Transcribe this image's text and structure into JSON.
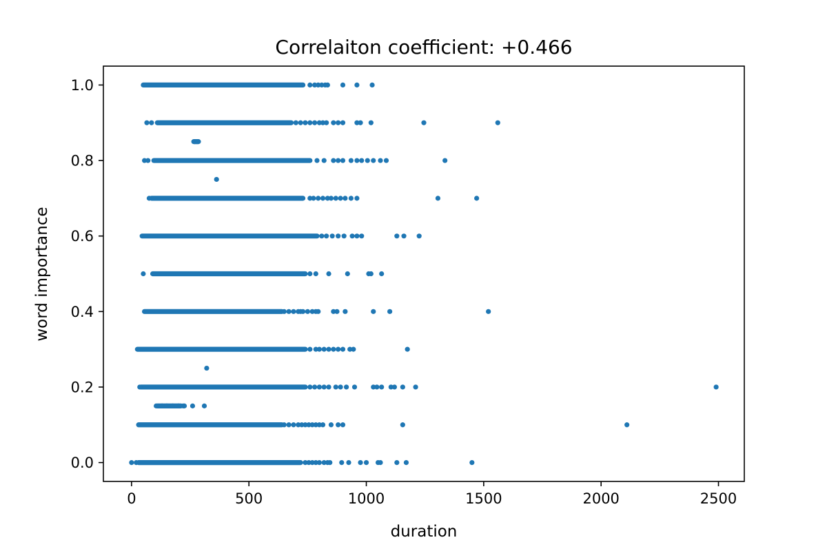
{
  "chart_data": {
    "type": "scatter",
    "title": "Correlaiton coefficient: +0.466",
    "xlabel": "duration",
    "ylabel": "word importance",
    "xlim": [
      -120,
      2610
    ],
    "ylim": [
      -0.05,
      1.05
    ],
    "xticks": [
      0,
      500,
      1000,
      1500,
      2000,
      2500
    ],
    "xtick_labels": [
      "0",
      "500",
      "1000",
      "1500",
      "2000",
      "2500"
    ],
    "yticks": [
      0.0,
      0.2,
      0.4,
      0.6,
      0.8,
      1.0
    ],
    "ytick_labels": [
      "0.0",
      "0.2",
      "0.4",
      "0.6",
      "0.8",
      "1.0"
    ],
    "grid": false,
    "marker_color": "#1f77b4",
    "rows": [
      {
        "y": 1.0,
        "dense_from": 50,
        "dense_to": 730,
        "x": [
          760,
          780,
          795,
          810,
          825,
          835,
          900,
          960,
          1025
        ]
      },
      {
        "y": 0.9,
        "dense_from": 110,
        "dense_to": 680,
        "x": [
          65,
          85,
          700,
          720,
          740,
          760,
          780,
          800,
          815,
          830,
          860,
          880,
          900,
          960,
          975,
          1020,
          1245,
          1560
        ]
      },
      {
        "y": 0.85,
        "dense_from": 265,
        "dense_to": 285,
        "x": [
          268,
          275,
          282
        ]
      },
      {
        "y": 0.8,
        "dense_from": 95,
        "dense_to": 760,
        "x": [
          55,
          70,
          790,
          820,
          860,
          880,
          900,
          935,
          960,
          980,
          1005,
          1030,
          1060,
          1085,
          1335
        ]
      },
      {
        "y": 0.75,
        "dense_from": 362,
        "dense_to": 362,
        "x": [
          362
        ]
      },
      {
        "y": 0.7,
        "dense_from": 85,
        "dense_to": 730,
        "x": [
          75,
          760,
          775,
          795,
          815,
          835,
          850,
          870,
          890,
          910,
          935,
          960,
          1305,
          1470
        ]
      },
      {
        "y": 0.6,
        "dense_from": 45,
        "dense_to": 790,
        "x": [
          810,
          830,
          855,
          880,
          905,
          940,
          960,
          980,
          1130,
          1160,
          1225
        ]
      },
      {
        "y": 0.5,
        "dense_from": 90,
        "dense_to": 740,
        "x": [
          50,
          760,
          785,
          840,
          920,
          1010,
          1020,
          1065
        ]
      },
      {
        "y": 0.4,
        "dense_from": 55,
        "dense_to": 640,
        "x": [
          650,
          670,
          690,
          710,
          720,
          730,
          750,
          770,
          785,
          795,
          860,
          875,
          910,
          1030,
          1100,
          1520
        ]
      },
      {
        "y": 0.3,
        "dense_from": 25,
        "dense_to": 740,
        "x": [
          760,
          785,
          800,
          820,
          840,
          860,
          880,
          900,
          930,
          945,
          1175
        ]
      },
      {
        "y": 0.25,
        "dense_from": 320,
        "dense_to": 320,
        "x": [
          320
        ]
      },
      {
        "y": 0.2,
        "dense_from": 40,
        "dense_to": 740,
        "x": [
          35,
          760,
          780,
          800,
          820,
          840,
          870,
          890,
          915,
          950,
          1030,
          1045,
          1065,
          1105,
          1120,
          1155,
          1210,
          2490
        ]
      },
      {
        "y": 0.15,
        "dense_from": 110,
        "dense_to": 210,
        "x": [
          105,
          130,
          150,
          175,
          200,
          220,
          225,
          260,
          310
        ]
      },
      {
        "y": 0.1,
        "dense_from": 30,
        "dense_to": 640,
        "x": [
          650,
          670,
          690,
          710,
          725,
          740,
          755,
          770,
          785,
          800,
          815,
          850,
          880,
          900,
          1155,
          2110
        ]
      },
      {
        "y": 0.0,
        "dense_from": 30,
        "dense_to": 720,
        "x": [
          0,
          20,
          740,
          755,
          770,
          785,
          800,
          820,
          835,
          845,
          895,
          925,
          975,
          1000,
          1050,
          1060,
          1130,
          1170,
          1450
        ]
      }
    ]
  }
}
